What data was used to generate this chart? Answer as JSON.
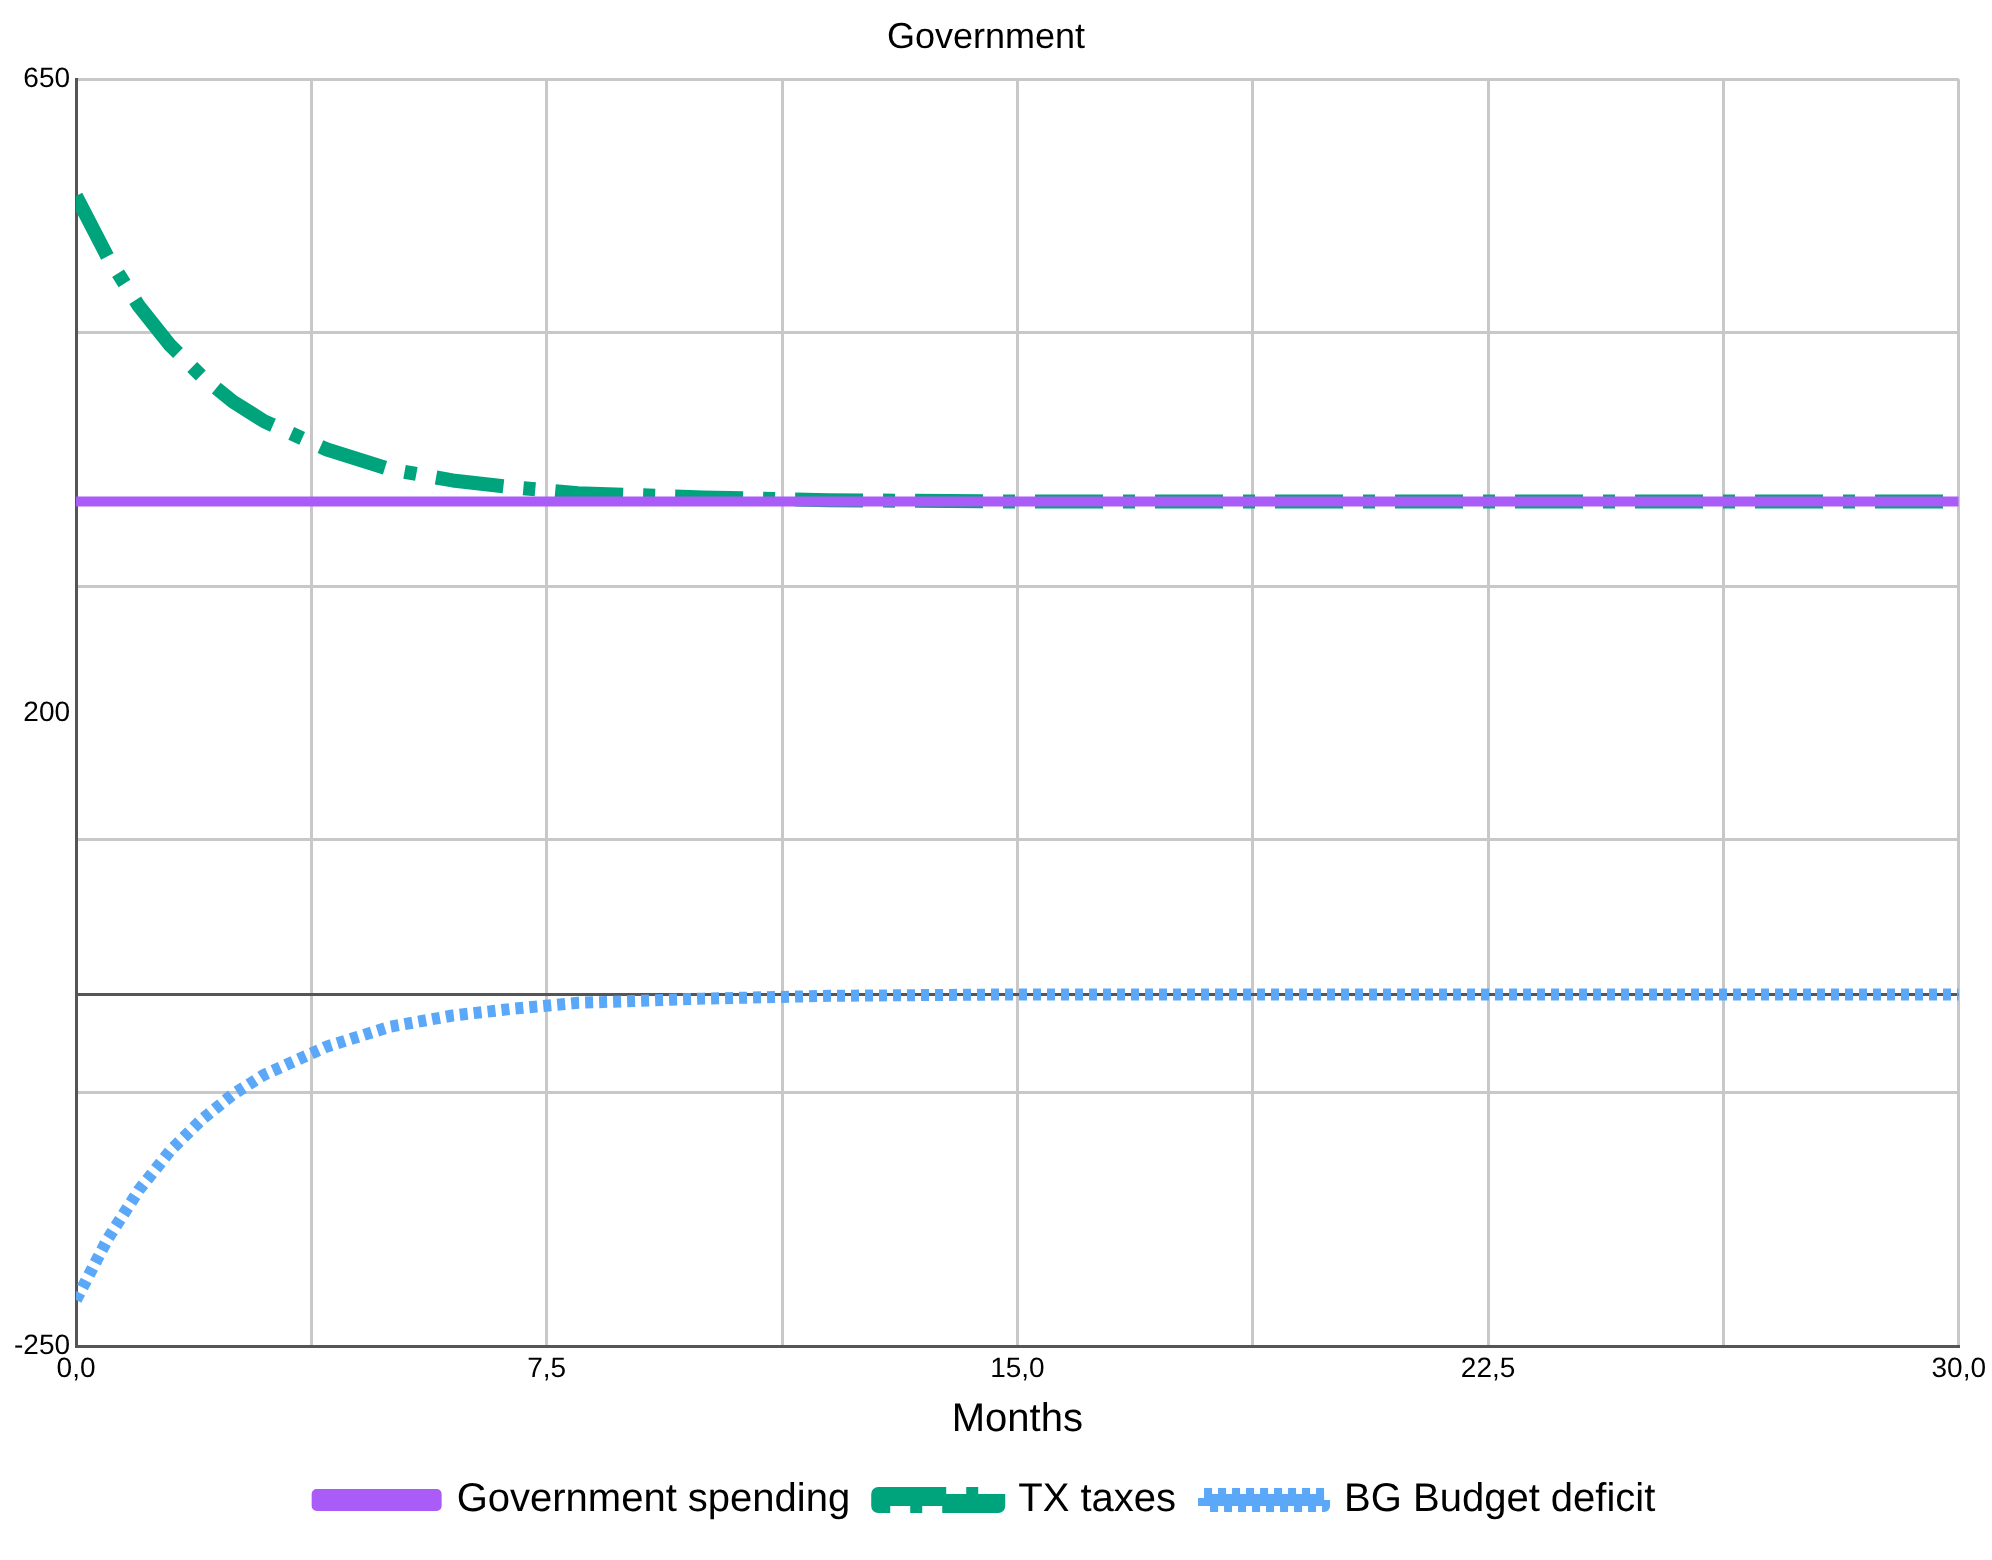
{
  "chart_data": {
    "type": "line",
    "title": "Government",
    "xlabel": "Months",
    "x": [
      0,
      0.5,
      1,
      1.5,
      2,
      2.5,
      3,
      4,
      5,
      6,
      7,
      8,
      10,
      12,
      15,
      20,
      25,
      30
    ],
    "series": [
      {
        "name": "Government spending",
        "color": "#a95cf8",
        "line_style": "solid",
        "values": [
          350,
          350,
          350,
          350,
          350,
          350,
          350,
          350,
          350,
          350,
          350,
          350,
          350,
          350,
          350,
          350,
          350,
          350
        ]
      },
      {
        "name": "TX taxes",
        "color": "#00a47c",
        "line_style": "dashed",
        "values": [
          567,
          524,
          489,
          461,
          439,
          421,
          407,
          387,
          373,
          365,
          360,
          356,
          353,
          351,
          350,
          350,
          350,
          350
        ]
      },
      {
        "name": "BG Budget deficit",
        "color": "#5aa8f7",
        "line_style": "dotted",
        "values": [
          -217,
          -174,
          -139,
          -111,
          -89,
          -71,
          -57,
          -37,
          -23,
          -15,
          -10,
          -6,
          -3,
          -1,
          0,
          0,
          0,
          0
        ]
      }
    ],
    "xlim": [
      0,
      30
    ],
    "xticks": [
      {
        "value": 0,
        "label": "0,0"
      },
      {
        "value": 3.75,
        "label": null
      },
      {
        "value": 7.5,
        "label": "7,5"
      },
      {
        "value": 11.25,
        "label": null
      },
      {
        "value": 15,
        "label": "15,0"
      },
      {
        "value": 18.75,
        "label": null
      },
      {
        "value": 22.5,
        "label": "22,5"
      },
      {
        "value": 26.25,
        "label": null
      },
      {
        "value": 30,
        "label": "30,0"
      }
    ],
    "ylim": [
      -250,
      650
    ],
    "yticks": [
      -250,
      {
        "value": -70,
        "label": null
      },
      {
        "value": 110,
        "label": null
      },
      200,
      {
        "value": 290,
        "label": null
      },
      {
        "value": 470,
        "label": null
      },
      650
    ],
    "ref_lines": [
      {
        "axis": "y",
        "value": 0,
        "color": "#555555"
      }
    ],
    "grid": true,
    "legend": "bottom",
    "marker": "none"
  }
}
